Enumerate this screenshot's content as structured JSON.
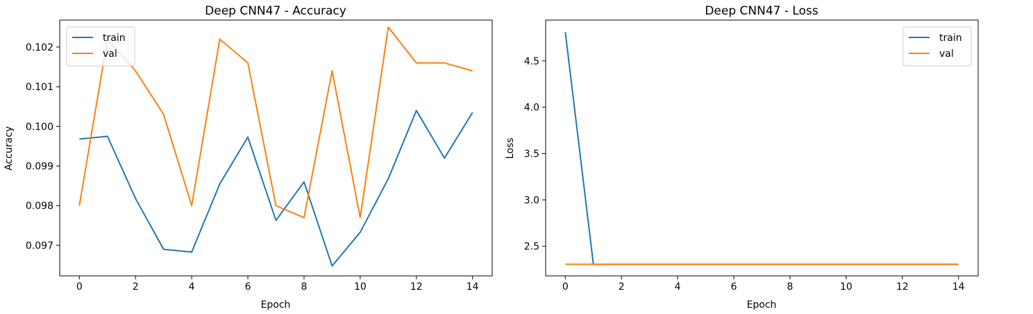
{
  "chart_data": [
    {
      "type": "line",
      "title": "Deep CNN47 - Accuracy",
      "xlabel": "Epoch",
      "ylabel": "Accuracy",
      "x": [
        0,
        1,
        2,
        3,
        4,
        5,
        6,
        7,
        8,
        9,
        10,
        11,
        12,
        13,
        14
      ],
      "xticks": [
        0,
        2,
        4,
        6,
        8,
        10,
        12,
        14
      ],
      "xlim": [
        -0.7,
        14.7
      ],
      "yticks": [
        0.097,
        0.098,
        0.099,
        0.1,
        0.101,
        0.102
      ],
      "ytick_labels": [
        "0.097",
        "0.098",
        "0.099",
        "0.100",
        "0.101",
        "0.102"
      ],
      "ylim": [
        0.09623,
        0.10268
      ],
      "grid": false,
      "legend_position": "upper-left",
      "series": [
        {
          "name": "train",
          "color": "#1f77b4",
          "values": [
            0.09968,
            0.09975,
            0.09818,
            0.0969,
            0.09683,
            0.09855,
            0.09973,
            0.09763,
            0.0986,
            0.09648,
            0.09733,
            0.09868,
            0.1004,
            0.0992,
            0.10035
          ]
        },
        {
          "name": "val",
          "color": "#ff7f0e",
          "values": [
            0.098,
            0.1022,
            0.1014,
            0.1003,
            0.098,
            0.1022,
            0.1016,
            0.098,
            0.0977,
            0.1014,
            0.0977,
            0.1025,
            0.1016,
            0.1016,
            0.1014
          ]
        }
      ]
    },
    {
      "type": "line",
      "title": "Deep CNN47 - Loss",
      "xlabel": "Epoch",
      "ylabel": "Loss",
      "x": [
        0,
        1,
        2,
        3,
        4,
        5,
        6,
        7,
        8,
        9,
        10,
        11,
        12,
        13,
        14
      ],
      "xticks": [
        0,
        2,
        4,
        6,
        8,
        10,
        12,
        14
      ],
      "xlim": [
        -0.7,
        14.7
      ],
      "yticks": [
        2.5,
        3.0,
        3.5,
        4.0,
        4.5
      ],
      "ytick_labels": [
        "2.5",
        "3.0",
        "3.5",
        "4.0",
        "4.5"
      ],
      "ylim": [
        2.18,
        4.94
      ],
      "grid": false,
      "legend_position": "upper-right",
      "series": [
        {
          "name": "train",
          "color": "#1f77b4",
          "values": [
            4.81,
            2.304,
            2.304,
            2.304,
            2.304,
            2.304,
            2.304,
            2.304,
            2.304,
            2.304,
            2.304,
            2.304,
            2.304,
            2.304,
            2.304
          ]
        },
        {
          "name": "val",
          "color": "#ff7f0e",
          "values": [
            2.305,
            2.305,
            2.305,
            2.305,
            2.305,
            2.305,
            2.305,
            2.305,
            2.305,
            2.305,
            2.305,
            2.305,
            2.305,
            2.305,
            2.305
          ]
        }
      ]
    }
  ]
}
